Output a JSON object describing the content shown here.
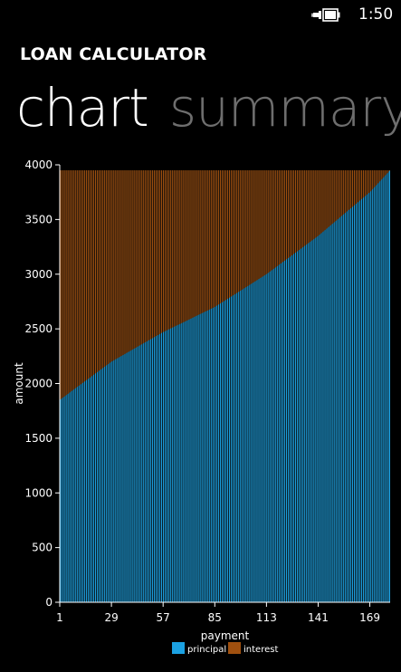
{
  "status_bar": {
    "time": "1:50",
    "battery_icon": "battery-charging-icon"
  },
  "app_title": "LOAN CALCULATOR",
  "pivot": {
    "tabs": [
      {
        "label": "chart",
        "active": true
      },
      {
        "label": "summary",
        "active": false
      }
    ]
  },
  "colors": {
    "principal": "#1ba1e2",
    "interest": "#a0500f",
    "background": "#000000",
    "bar_separator": "#0a0a0a"
  },
  "chart_data": {
    "type": "area",
    "stacked": true,
    "xlabel": "payment",
    "ylabel": "amount",
    "ylim": [
      0,
      4000
    ],
    "yticks": [
      0,
      500,
      1000,
      1500,
      2000,
      2500,
      3000,
      3500,
      4000
    ],
    "xlim": [
      1,
      180
    ],
    "xticks": [
      1,
      29,
      57,
      85,
      113,
      141,
      169
    ],
    "payment_total": 3950,
    "series": [
      {
        "name": "principal",
        "x": [
          1,
          29,
          57,
          85,
          113,
          141,
          169,
          180
        ],
        "values": [
          1850,
          2200,
          2470,
          2700,
          3000,
          3350,
          3750,
          3950
        ]
      },
      {
        "name": "interest",
        "x": [
          1,
          29,
          57,
          85,
          113,
          141,
          169,
          180
        ],
        "values": [
          2100,
          1750,
          1480,
          1250,
          950,
          600,
          200,
          0
        ]
      }
    ],
    "legend_position": "bottom"
  }
}
